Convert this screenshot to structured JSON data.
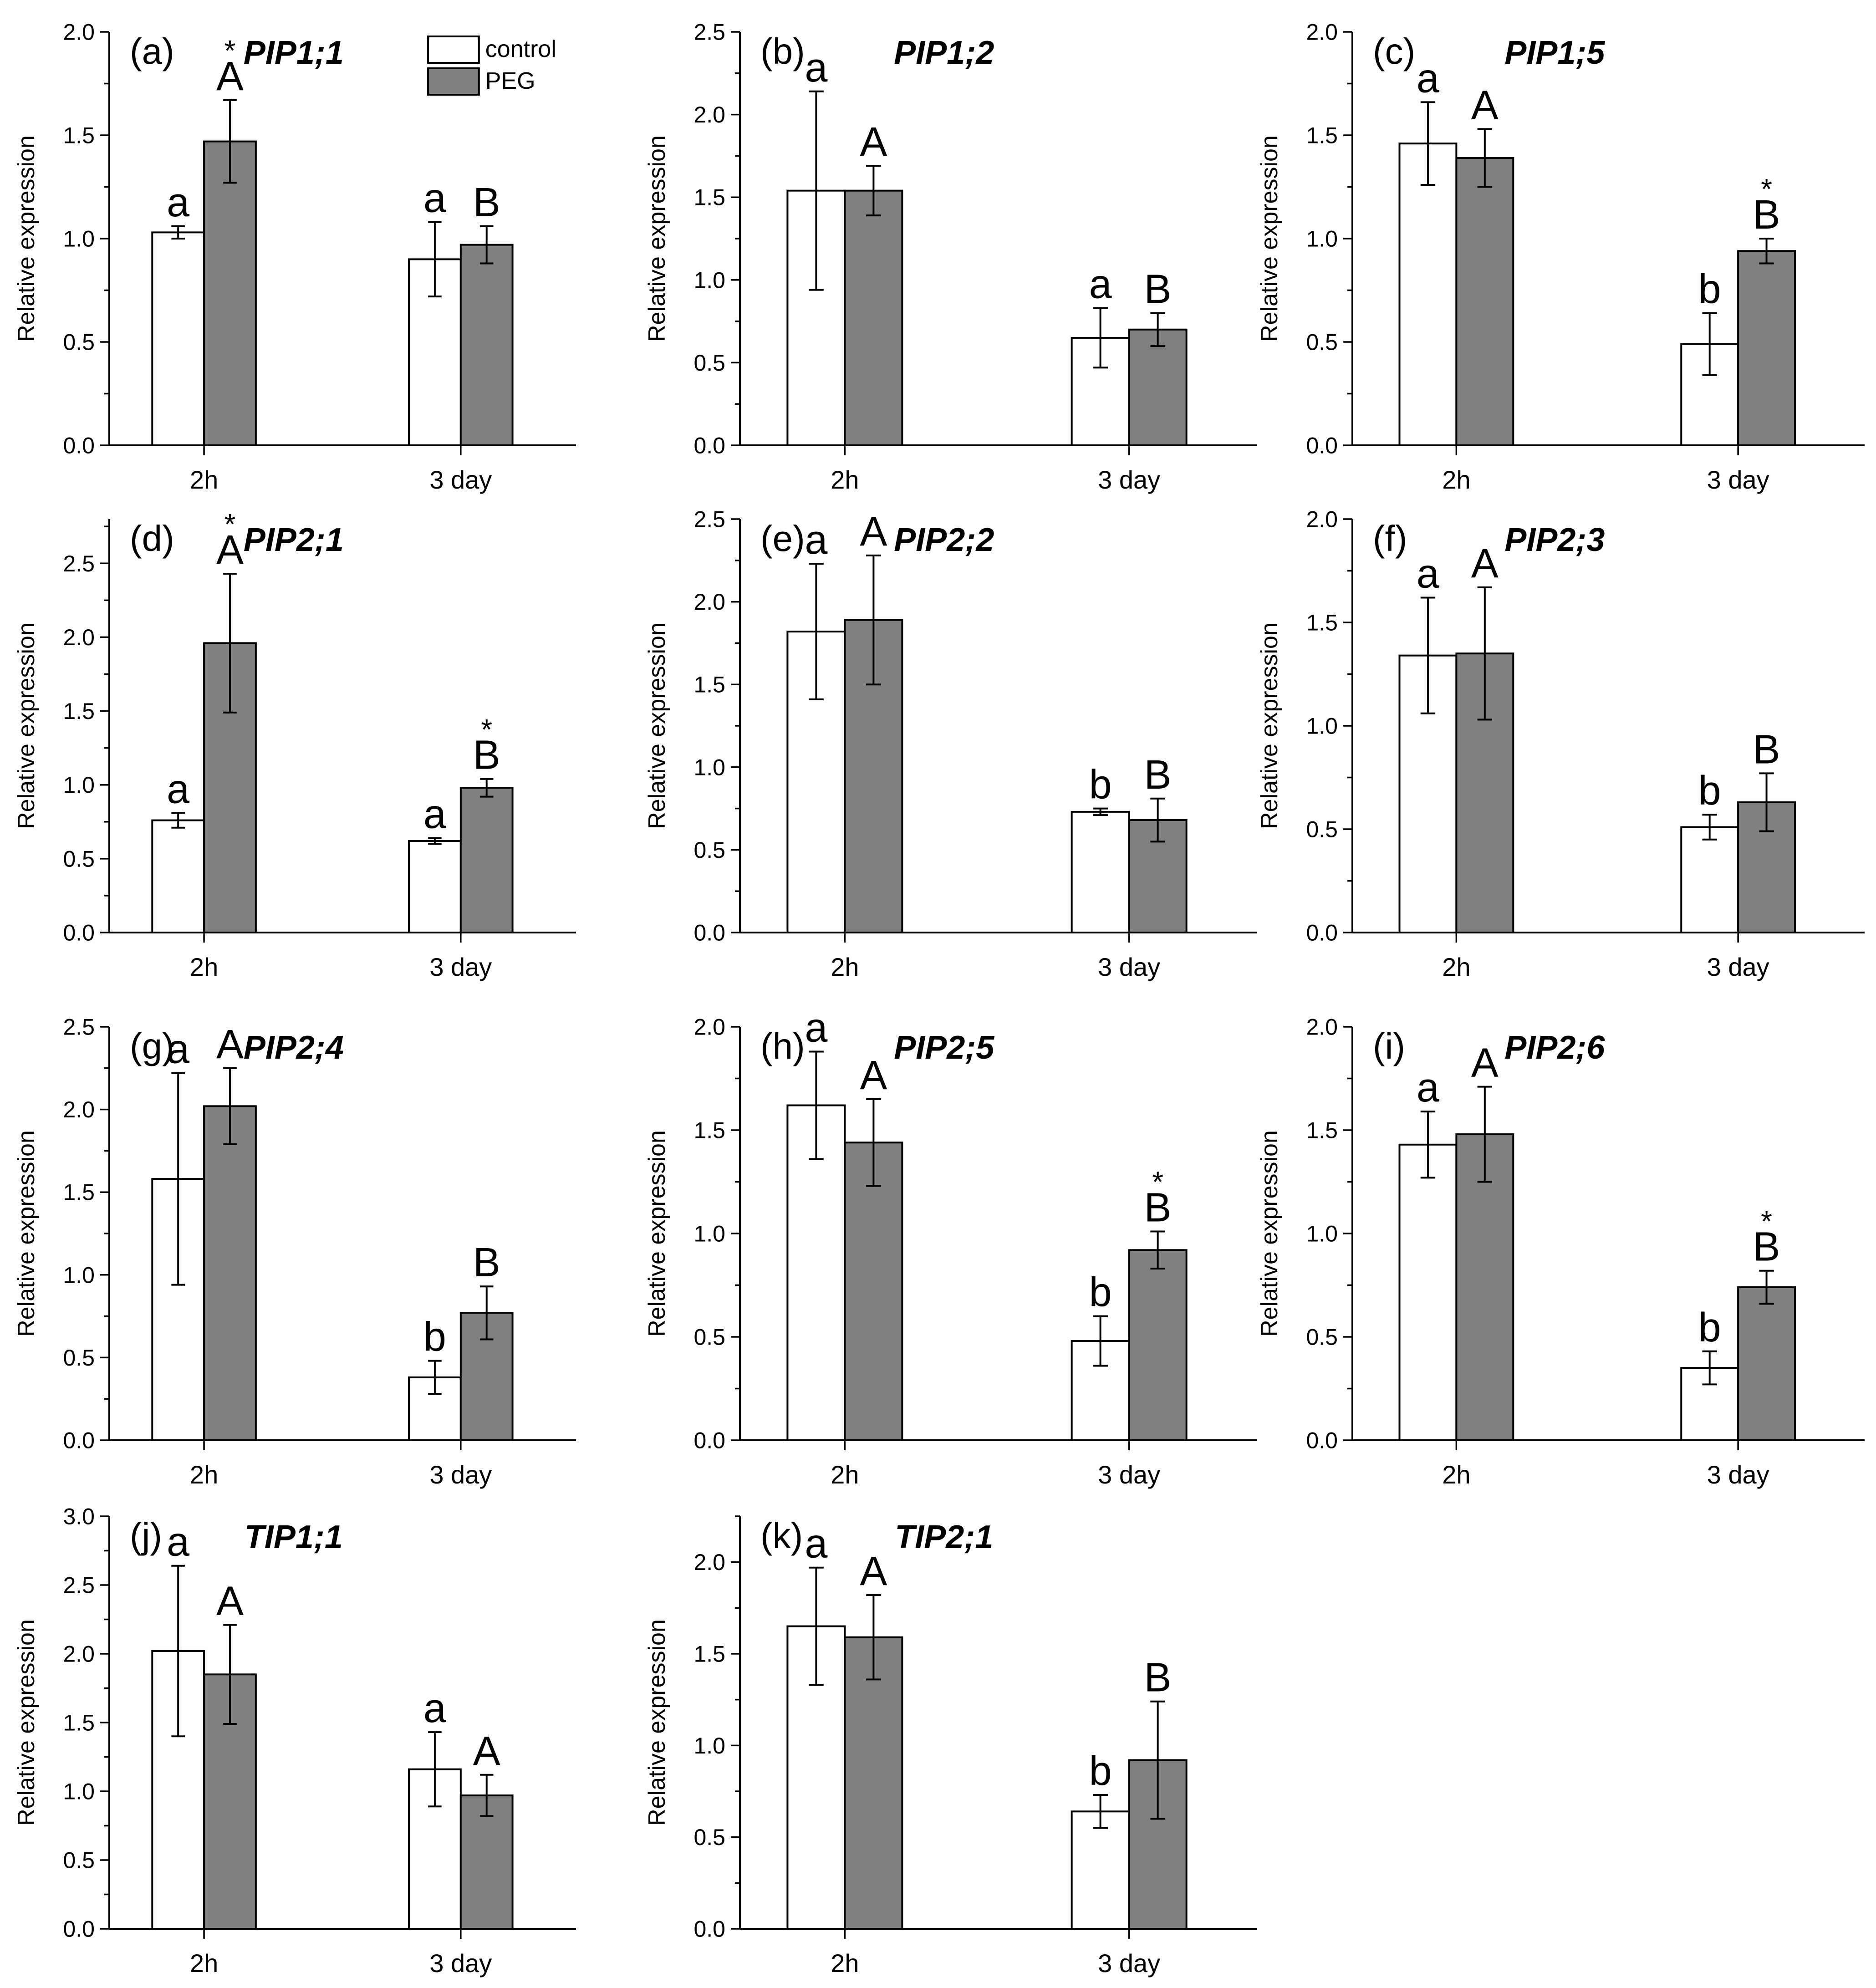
{
  "legend": {
    "control": {
      "label": "control",
      "color": "#ffffff"
    },
    "peg": {
      "label": "PEG",
      "color": "#808080"
    }
  },
  "chart_data": [
    {
      "type": "bar",
      "panel": "(a)",
      "title": "PIP1;1",
      "ylabel": "Relative expression",
      "categories": [
        "2h",
        "3 day"
      ],
      "ylim": [
        0,
        2.0
      ],
      "yticks": [
        "0.0",
        "0.5",
        "1.0",
        "1.5",
        "2.0"
      ],
      "legend_visible": true,
      "series": [
        {
          "name": "control",
          "values": [
            1.03,
            0.9
          ],
          "errors": [
            0.03,
            0.18
          ],
          "labels": [
            "a",
            "a"
          ],
          "stars": [
            false,
            false
          ]
        },
        {
          "name": "PEG",
          "values": [
            1.47,
            0.97
          ],
          "errors": [
            0.2,
            0.09
          ],
          "labels": [
            "A",
            "B"
          ],
          "stars": [
            true,
            false
          ]
        }
      ]
    },
    {
      "type": "bar",
      "panel": "(b)",
      "title": "PIP1;2",
      "ylabel": "Relative expression",
      "categories": [
        "2h",
        "3 day"
      ],
      "ylim": [
        0,
        2.5
      ],
      "yticks": [
        "0.0",
        "0.5",
        "1.0",
        "1.5",
        "2.0",
        "2.5"
      ],
      "series": [
        {
          "name": "control",
          "values": [
            1.54,
            0.65
          ],
          "errors": [
            0.6,
            0.18
          ],
          "labels": [
            "a",
            "a"
          ],
          "stars": [
            false,
            false
          ]
        },
        {
          "name": "PEG",
          "values": [
            1.54,
            0.7
          ],
          "errors": [
            0.15,
            0.1
          ],
          "labels": [
            "A",
            "B"
          ],
          "stars": [
            false,
            false
          ]
        }
      ]
    },
    {
      "type": "bar",
      "panel": "(c)",
      "title": "PIP1;5",
      "ylabel": "Relative expression",
      "categories": [
        "2h",
        "3 day"
      ],
      "ylim": [
        0,
        2.0
      ],
      "yticks": [
        "0.0",
        "0.5",
        "1.0",
        "1.5",
        "2.0"
      ],
      "series": [
        {
          "name": "control",
          "values": [
            1.46,
            0.49
          ],
          "errors": [
            0.2,
            0.15
          ],
          "labels": [
            "a",
            "b"
          ],
          "stars": [
            false,
            false
          ]
        },
        {
          "name": "PEG",
          "values": [
            1.39,
            0.94
          ],
          "errors": [
            0.14,
            0.06
          ],
          "labels": [
            "A",
            "B"
          ],
          "stars": [
            false,
            true
          ]
        }
      ]
    },
    {
      "type": "bar",
      "panel": "(d)",
      "title": "PIP2;1",
      "ylabel": "Relative expression",
      "categories": [
        "2h",
        "3 day"
      ],
      "ylim": [
        0,
        2.8
      ],
      "yticks": [
        "0.0",
        "0.5",
        "1.0",
        "1.5",
        "2.0",
        "2.5"
      ],
      "series": [
        {
          "name": "control",
          "values": [
            0.76,
            0.62
          ],
          "errors": [
            0.05,
            0.02
          ],
          "labels": [
            "a",
            "a"
          ],
          "stars": [
            false,
            false
          ]
        },
        {
          "name": "PEG",
          "values": [
            1.96,
            0.98
          ],
          "errors": [
            0.47,
            0.06
          ],
          "labels": [
            "A",
            "B"
          ],
          "stars": [
            true,
            true
          ]
        }
      ]
    },
    {
      "type": "bar",
      "panel": "(e)",
      "title": "PIP2;2",
      "ylabel": "Relative expression",
      "categories": [
        "2h",
        "3 day"
      ],
      "ylim": [
        0,
        2.5
      ],
      "yticks": [
        "0.0",
        "0.5",
        "1.0",
        "1.5",
        "2.0",
        "2.5"
      ],
      "series": [
        {
          "name": "control",
          "values": [
            1.82,
            0.73
          ],
          "errors": [
            0.41,
            0.02
          ],
          "labels": [
            "a",
            "b"
          ],
          "stars": [
            false,
            false
          ]
        },
        {
          "name": "PEG",
          "values": [
            1.89,
            0.68
          ],
          "errors": [
            0.39,
            0.13
          ],
          "labels": [
            "A",
            "B"
          ],
          "stars": [
            false,
            false
          ]
        }
      ]
    },
    {
      "type": "bar",
      "panel": "(f)",
      "title": "PIP2;3",
      "ylabel": "Relative expression",
      "categories": [
        "2h",
        "3 day"
      ],
      "ylim": [
        0,
        2.0
      ],
      "yticks": [
        "0.0",
        "0.5",
        "1.0",
        "1.5",
        "2.0"
      ],
      "series": [
        {
          "name": "control",
          "values": [
            1.34,
            0.51
          ],
          "errors": [
            0.28,
            0.06
          ],
          "labels": [
            "a",
            "b"
          ],
          "stars": [
            false,
            false
          ]
        },
        {
          "name": "PEG",
          "values": [
            1.35,
            0.63
          ],
          "errors": [
            0.32,
            0.14
          ],
          "labels": [
            "A",
            "B"
          ],
          "stars": [
            false,
            false
          ]
        }
      ]
    },
    {
      "type": "bar",
      "panel": "(g)",
      "title": "PIP2;4",
      "ylabel": "Relative expression",
      "categories": [
        "2h",
        "3 day"
      ],
      "ylim": [
        0,
        2.5
      ],
      "yticks": [
        "0.0",
        "0.5",
        "1.0",
        "1.5",
        "2.0",
        "2.5"
      ],
      "series": [
        {
          "name": "control",
          "values": [
            1.58,
            0.38
          ],
          "errors": [
            0.64,
            0.1
          ],
          "labels": [
            "a",
            "b"
          ],
          "stars": [
            false,
            false
          ]
        },
        {
          "name": "PEG",
          "values": [
            2.02,
            0.77
          ],
          "errors": [
            0.23,
            0.16
          ],
          "labels": [
            "A",
            "B"
          ],
          "stars": [
            false,
            false
          ]
        }
      ]
    },
    {
      "type": "bar",
      "panel": "(h)",
      "title": "PIP2;5",
      "ylabel": "Relative expression",
      "categories": [
        "2h",
        "3 day"
      ],
      "ylim": [
        0,
        2.0
      ],
      "yticks": [
        "0.0",
        "0.5",
        "1.0",
        "1.5",
        "2.0"
      ],
      "series": [
        {
          "name": "control",
          "values": [
            1.62,
            0.48
          ],
          "errors": [
            0.26,
            0.12
          ],
          "labels": [
            "a",
            "b"
          ],
          "stars": [
            false,
            false
          ]
        },
        {
          "name": "PEG",
          "values": [
            1.44,
            0.92
          ],
          "errors": [
            0.21,
            0.09
          ],
          "labels": [
            "A",
            "B"
          ],
          "stars": [
            false,
            true
          ]
        }
      ]
    },
    {
      "type": "bar",
      "panel": "(i)",
      "title": "PIP2;6",
      "ylabel": "Relative expression",
      "categories": [
        "2h",
        "3 day"
      ],
      "ylim": [
        0,
        2.0
      ],
      "yticks": [
        "0.0",
        "0.5",
        "1.0",
        "1.5",
        "2.0"
      ],
      "series": [
        {
          "name": "control",
          "values": [
            1.43,
            0.35
          ],
          "errors": [
            0.16,
            0.08
          ],
          "labels": [
            "a",
            "b"
          ],
          "stars": [
            false,
            false
          ]
        },
        {
          "name": "PEG",
          "values": [
            1.48,
            0.74
          ],
          "errors": [
            0.23,
            0.08
          ],
          "labels": [
            "A",
            "B"
          ],
          "stars": [
            false,
            true
          ]
        }
      ]
    },
    {
      "type": "bar",
      "panel": "(j)",
      "title": "TIP1;1",
      "ylabel": "Relative expression",
      "categories": [
        "2h",
        "3 day"
      ],
      "ylim": [
        0,
        3.0
      ],
      "yticks": [
        "0.0",
        "0.5",
        "1.0",
        "1.5",
        "2.0",
        "2.5",
        "3.0"
      ],
      "series": [
        {
          "name": "control",
          "values": [
            2.02,
            1.16
          ],
          "errors": [
            0.62,
            0.27
          ],
          "labels": [
            "a",
            "a"
          ],
          "stars": [
            false,
            false
          ]
        },
        {
          "name": "PEG",
          "values": [
            1.85,
            0.97
          ],
          "errors": [
            0.36,
            0.15
          ],
          "labels": [
            "A",
            "A"
          ],
          "stars": [
            false,
            false
          ]
        }
      ]
    },
    {
      "type": "bar",
      "panel": "(k)",
      "title": "TIP2;1",
      "ylabel": "Relative expression",
      "categories": [
        "2h",
        "3 day"
      ],
      "ylim": [
        0,
        2.25
      ],
      "yticks": [
        "0.0",
        "0.5",
        "1.0",
        "1.5",
        "2.0"
      ],
      "series": [
        {
          "name": "control",
          "values": [
            1.65,
            0.64
          ],
          "errors": [
            0.32,
            0.09
          ],
          "labels": [
            "a",
            "b"
          ],
          "stars": [
            false,
            false
          ]
        },
        {
          "name": "PEG",
          "values": [
            1.59,
            0.92
          ],
          "errors": [
            0.23,
            0.32
          ],
          "labels": [
            "A",
            "B"
          ],
          "stars": [
            false,
            false
          ]
        }
      ]
    }
  ]
}
